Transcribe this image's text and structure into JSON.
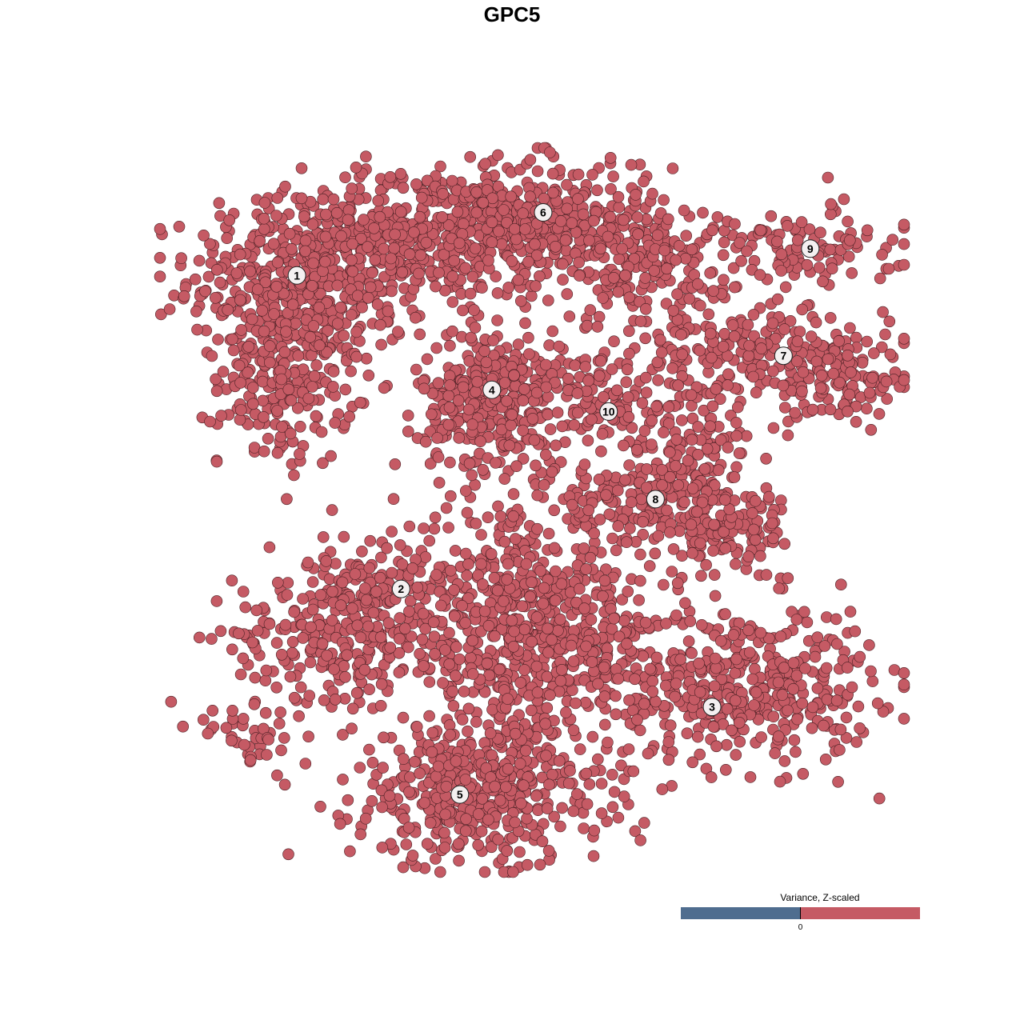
{
  "chart_data": {
    "type": "scatter",
    "title": "GPC5",
    "xlabel": "",
    "ylabel": "",
    "xlim": [
      -50,
      50
    ],
    "ylim": [
      -50,
      50
    ],
    "grid": false,
    "axes_visible": false,
    "point_color": "#c55a64",
    "point_edge_color": "#4a2024",
    "clusters": [
      {
        "label": "1",
        "center": [
          -31.6,
          32.4
        ],
        "blobs": [
          {
            "center": [
              -30,
              32
            ],
            "sd": [
              8,
              6
            ],
            "n": 480
          },
          {
            "center": [
              -33,
              18
            ],
            "sd": [
              4.5,
              6
            ],
            "n": 230
          },
          {
            "center": [
              -13,
              38
            ],
            "sd": [
              9,
              4.5
            ],
            "n": 330
          }
        ]
      },
      {
        "label": "2",
        "center": [
          -17.6,
          -10.9
        ],
        "blobs": [
          {
            "center": [
              -26,
              -17
            ],
            "sd": [
              7,
              4.5
            ],
            "n": 240
          },
          {
            "center": [
              -20,
              -9
            ],
            "sd": [
              5,
              2.5
            ],
            "n": 80
          },
          {
            "center": [
              -38,
              -31
            ],
            "sd": [
              4,
              1.8
            ],
            "n": 40
          }
        ]
      },
      {
        "label": "3",
        "center": [
          24.2,
          -27.2
        ],
        "blobs": [
          {
            "center": [
              28,
              -24
            ],
            "sd": [
              9,
              5.5
            ],
            "n": 450
          }
        ]
      },
      {
        "label": "4",
        "center": [
          -5.4,
          16.6
        ],
        "blobs": [
          {
            "center": [
              -5,
              15
            ],
            "sd": [
              5,
              5
            ],
            "n": 340
          }
        ]
      },
      {
        "label": "5",
        "center": [
          -9.7,
          -39.3
        ],
        "blobs": [
          {
            "center": [
              -7,
              -39
            ],
            "sd": [
              8.5,
              5
            ],
            "n": 450
          },
          {
            "center": [
              -1,
              -17
            ],
            "sd": [
              9,
              8
            ],
            "n": 700
          }
        ]
      },
      {
        "label": "6",
        "center": [
          1.5,
          41.1
        ],
        "blobs": [
          {
            "center": [
              2,
              40
            ],
            "sd": [
              8,
              4.5
            ],
            "n": 340
          },
          {
            "center": [
              15,
              33
            ],
            "sd": [
              6,
              4
            ],
            "n": 150
          }
        ]
      },
      {
        "label": "7",
        "center": [
          33.8,
          21.3
        ],
        "blobs": [
          {
            "center": [
              30,
              22
            ],
            "sd": [
              9,
              3
            ],
            "n": 200
          },
          {
            "center": [
              41,
              17
            ],
            "sd": [
              5,
              3
            ],
            "n": 100
          }
        ]
      },
      {
        "label": "8",
        "center": [
          16.6,
          1.5
        ],
        "blobs": [
          {
            "center": [
              21,
              6
            ],
            "sd": [
              4.5,
              6
            ],
            "n": 190
          },
          {
            "center": [
              28,
              -2
            ],
            "sd": [
              4,
              2.5
            ],
            "n": 100
          },
          {
            "center": [
              12,
              1
            ],
            "sd": [
              5,
              2
            ],
            "n": 80
          }
        ]
      },
      {
        "label": "9",
        "center": [
          37.4,
          36.1
        ],
        "blobs": [
          {
            "center": [
              34,
              36
            ],
            "sd": [
              8,
              3
            ],
            "n": 120
          }
        ]
      },
      {
        "label": "10",
        "center": [
          10.3,
          13.6
        ],
        "blobs": [
          {
            "center": [
              10,
              15
            ],
            "sd": [
              4,
              4
            ],
            "n": 100
          }
        ]
      }
    ],
    "legend": {
      "title": "Variance, Z-scaled",
      "tick_label": "0",
      "low_color": "#4f6d8f",
      "high_color": "#c55a64",
      "placement": "bottom-right"
    }
  }
}
